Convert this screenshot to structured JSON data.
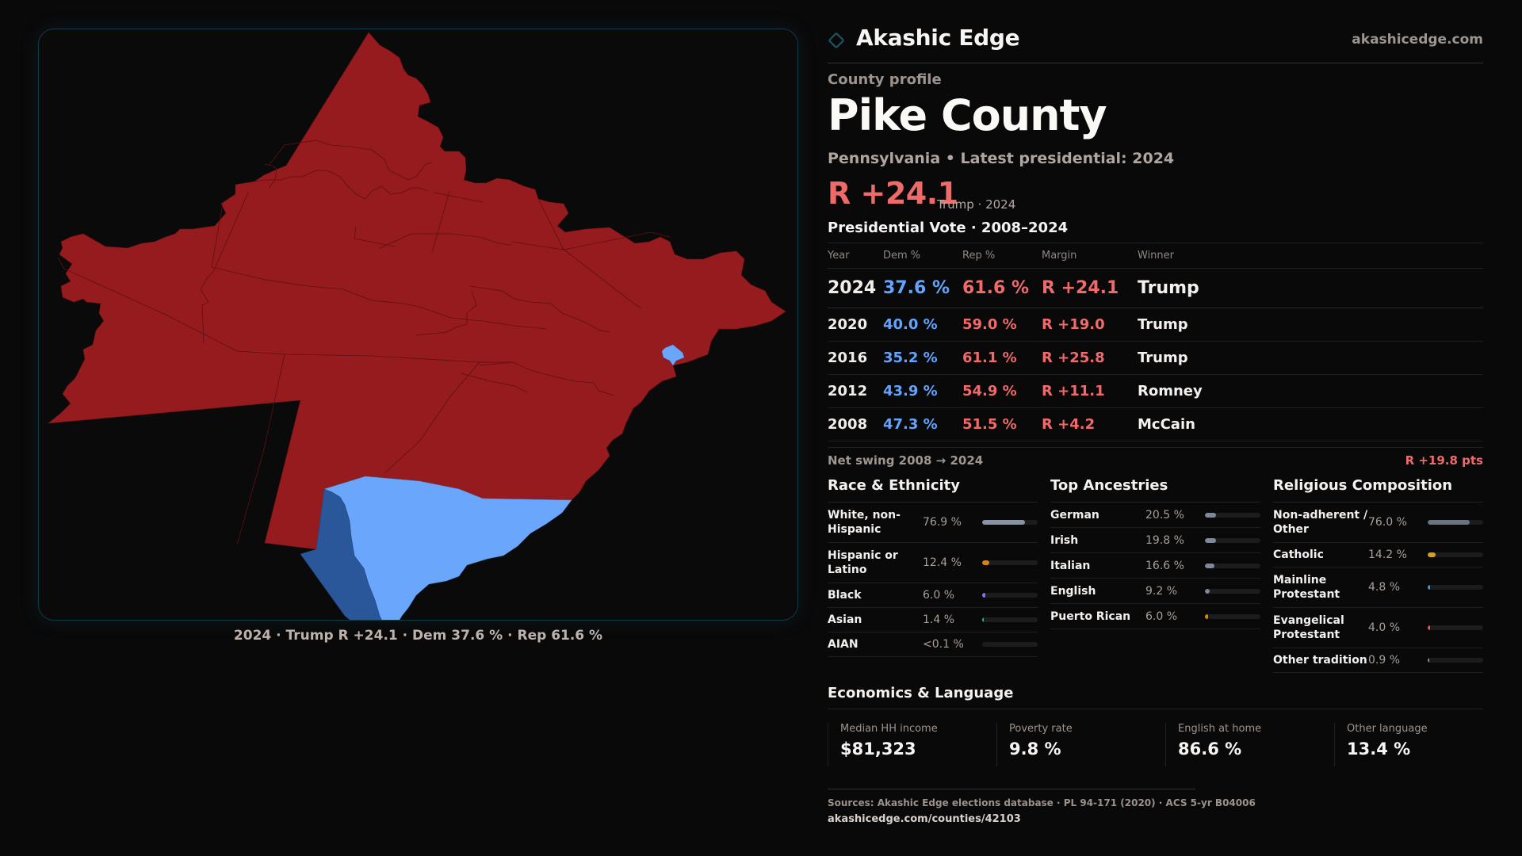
{
  "brand": {
    "name": "Akashic Edge",
    "url": "akashicedge.com",
    "logo_icon": "diamond-outline-icon",
    "accent": "#1b5a68"
  },
  "profile": {
    "eyebrow": "County profile",
    "title": "Pike County",
    "subtitle": "Pennsylvania • Latest presidential: 2024",
    "headline_margin": "R +24.1",
    "headline_sub": "Trump · 2024"
  },
  "colors": {
    "dem": "#62a4ff",
    "rep": "#f06a6a",
    "map_rep": "#951b1e",
    "map_dem_light": "#6aa6fb",
    "map_dem_dark": "#2a5799"
  },
  "map": {
    "caption": "2024 · Trump R +24.1 · Dem 37.6 % · Rep 61.6 %",
    "winner_party": "R"
  },
  "vote": {
    "title": "Presidential Vote · 2008–2024",
    "columns": [
      "Year",
      "Dem %",
      "Rep %",
      "Margin",
      "Winner"
    ],
    "rows": [
      {
        "year": "2024",
        "dem": "37.6 %",
        "rep": "61.6 %",
        "margin": "R +24.1",
        "winner": "Trump"
      },
      {
        "year": "2020",
        "dem": "40.0 %",
        "rep": "59.0 %",
        "margin": "R +19.0",
        "winner": "Trump"
      },
      {
        "year": "2016",
        "dem": "35.2 %",
        "rep": "61.1 %",
        "margin": "R +25.8",
        "winner": "Trump"
      },
      {
        "year": "2012",
        "dem": "43.9 %",
        "rep": "54.9 %",
        "margin": "R +11.1",
        "winner": "Romney"
      },
      {
        "year": "2008",
        "dem": "47.3 %",
        "rep": "51.5 %",
        "margin": "R +4.2",
        "winner": "McCain"
      }
    ],
    "swing_label": "Net swing 2008 → 2024",
    "swing_value": "R +19.8 pts"
  },
  "race": {
    "title": "Race & Ethnicity",
    "items": [
      {
        "label": "White, non-Hispanic",
        "value": "76.9 %",
        "pct": 76.9,
        "color": "#8a94a6"
      },
      {
        "label": "Hispanic or Latino",
        "value": "12.4 %",
        "pct": 12.4,
        "color": "#d9860f"
      },
      {
        "label": "Black",
        "value": "6.0 %",
        "pct": 6.0,
        "color": "#8b74e0"
      },
      {
        "label": "Asian",
        "value": "1.4 %",
        "pct": 1.4,
        "color": "#2fb38a"
      },
      {
        "label": "AIAN",
        "value": "<0.1 %",
        "pct": 0.05,
        "color": "#c0bab4"
      }
    ]
  },
  "ancestry": {
    "title": "Top Ancestries",
    "items": [
      {
        "label": "German",
        "value": "20.5 %",
        "pct": 20.5,
        "color": "#7e889a"
      },
      {
        "label": "Irish",
        "value": "19.8 %",
        "pct": 19.8,
        "color": "#7e889a"
      },
      {
        "label": "Italian",
        "value": "16.6 %",
        "pct": 16.6,
        "color": "#7e889a"
      },
      {
        "label": "English",
        "value": "9.2 %",
        "pct": 9.2,
        "color": "#7e889a"
      },
      {
        "label": "Puerto Rican",
        "value": "6.0 %",
        "pct": 6.0,
        "color": "#d9860f"
      }
    ]
  },
  "religion": {
    "title": "Religious Composition",
    "items": [
      {
        "label": "Non-adherent / Other",
        "value": "76.0 %",
        "pct": 76.0,
        "color": "#6b7280"
      },
      {
        "label": "Catholic",
        "value": "14.2 %",
        "pct": 14.2,
        "color": "#d4a017"
      },
      {
        "label": "Mainline Protestant",
        "value": "4.8 %",
        "pct": 4.8,
        "color": "#4d8fe6"
      },
      {
        "label": "Evangelical Protestant",
        "value": "4.0 %",
        "pct": 4.0,
        "color": "#e05555"
      },
      {
        "label": "Other tradition",
        "value": "0.9 %",
        "pct": 0.9,
        "color": "#8f8b86"
      }
    ]
  },
  "economics": {
    "title": "Economics & Language",
    "kpis": [
      {
        "label": "Median HH income",
        "value": "$81,323"
      },
      {
        "label": "Poverty rate",
        "value": "9.8 %"
      },
      {
        "label": "English at home",
        "value": "86.6 %"
      },
      {
        "label": "Other language",
        "value": "13.4 %"
      }
    ]
  },
  "sources": {
    "text": "Sources: Akashic Edge elections database · PL 94-171 (2020) · ACS 5-yr B04006",
    "link": "akashicedge.com/counties/42103"
  }
}
